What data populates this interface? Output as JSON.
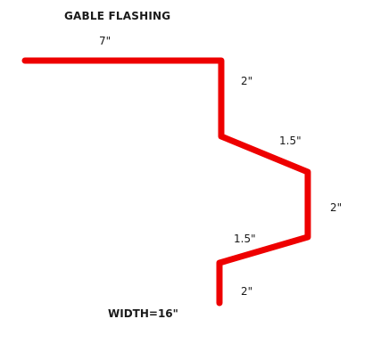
{
  "title": "GABLE FLASHING",
  "profile": {
    "color": "#ee0000"
  },
  "dimensions": {
    "top": "7\"",
    "vertical_upper": "2\"",
    "slope_upper": "1.5\"",
    "vertical_middle": "2\"",
    "slope_lower": "1.5\"",
    "vertical_lower": "2\""
  },
  "total_width": "WIDTH=16\""
}
